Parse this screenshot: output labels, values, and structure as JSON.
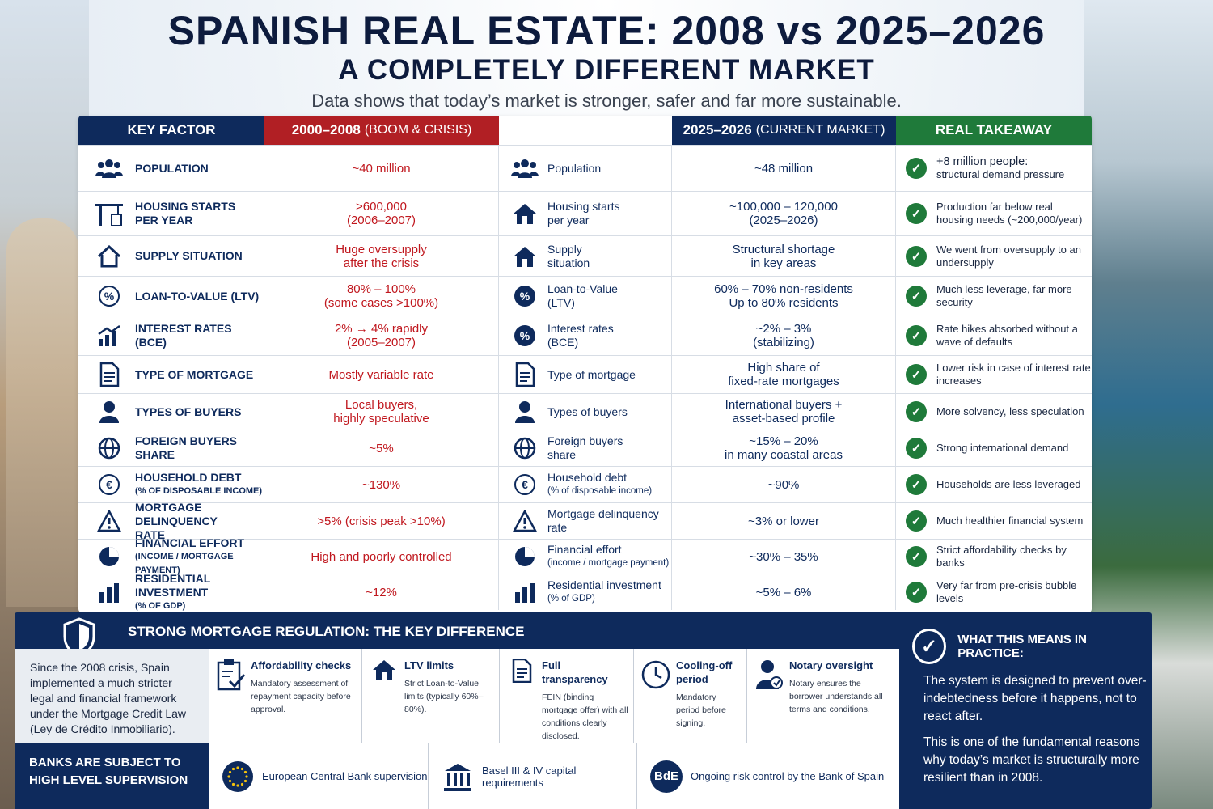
{
  "header": {
    "title": "SPANISH REAL ESTATE: 2008 vs 2025–2026",
    "subtitle": "A COMPLETELY DIFFERENT MARKET",
    "tagline": "Data shows that today’s market is stronger, safer and far more sustainable."
  },
  "table": {
    "headers": {
      "key_factor": "KEY FACTOR",
      "boom_main": "2000–2008",
      "boom_sub": "(BOOM & CRISIS)",
      "current_main": "2025–2026",
      "current_sub": "(CURRENT MARKET)",
      "takeaway": "REAL TAKEAWAY"
    },
    "rows": [
      {
        "factor": "POPULATION",
        "factor_sub": "",
        "boom": "~40 million",
        "boom2": "",
        "cur_label": "Population",
        "cur_label2": "",
        "cur_sub": "",
        "cur": "~48 million",
        "cur2": "",
        "take_lead": "+8 million people:",
        "take": "structural demand pressure",
        "icon": "people-icon"
      },
      {
        "factor": "HOUSING STARTS",
        "factor_sub": "PER YEAR",
        "boom": ">600,000",
        "boom2": "(2006–2007)",
        "cur_label": "Housing starts",
        "cur_label2": "per year",
        "cur_sub": "",
        "cur": "~100,000 – 120,000",
        "cur2": "(2025–2026)",
        "take_lead": "",
        "take": "Production far below real housing needs (~200,000/year)",
        "icon": "crane-icon"
      },
      {
        "factor": "SUPPLY SITUATION",
        "factor_sub": "",
        "boom": "Huge oversupply",
        "boom2": "after the crisis",
        "cur_label": "Supply",
        "cur_label2": "situation",
        "cur_sub": "",
        "cur": "Structural shortage",
        "cur2": "in key areas",
        "take_lead": "",
        "take": "We went from oversupply to an undersupply",
        "icon": "house-icon"
      },
      {
        "factor": "LOAN-TO-VALUE (LTV)",
        "factor_sub": "",
        "boom": "80% – 100%",
        "boom2": "(some cases >100%)",
        "cur_label": "Loan-to-Value",
        "cur_label2": "(LTV)",
        "cur_sub": "",
        "cur": "60% – 70% non-residents",
        "cur2": "Up to 80% residents",
        "take_lead": "",
        "take": "Much less leverage, far more security",
        "icon": "percent-icon"
      },
      {
        "factor": "INTEREST RATES (BCE)",
        "factor_sub": "",
        "boom": "2% → 4% rapidly",
        "boom2": "(2005–2007)",
        "cur_label": "Interest rates",
        "cur_label2": "(BCE)",
        "cur_sub": "",
        "cur": "~2% – 3%",
        "cur2": "(stabilizing)",
        "take_lead": "",
        "take": "Rate hikes absorbed without a wave of defaults",
        "icon": "growth-chart-icon"
      },
      {
        "factor": "TYPE OF MORTGAGE",
        "factor_sub": "",
        "boom": "Mostly variable rate",
        "boom2": "",
        "cur_label": "Type of mortgage",
        "cur_label2": "",
        "cur_sub": "",
        "cur": "High share of",
        "cur2": "fixed-rate mortgages",
        "take_lead": "",
        "take": "Lower risk in case of interest rate increases",
        "icon": "document-icon"
      },
      {
        "factor": "TYPES OF BUYERS",
        "factor_sub": "",
        "boom": "Local buyers,",
        "boom2": "highly speculative",
        "cur_label": "Types of buyers",
        "cur_label2": "",
        "cur_sub": "",
        "cur": "International buyers +",
        "cur2": "asset-based profile",
        "take_lead": "",
        "take": "More solvency, less speculation",
        "icon": "person-icon"
      },
      {
        "factor": "FOREIGN BUYERS SHARE",
        "factor_sub": "",
        "boom": "~5%",
        "boom2": "",
        "cur_label": "Foreign buyers",
        "cur_label2": "share",
        "cur_sub": "",
        "cur": "~15% – 20%",
        "cur2": "in many coastal areas",
        "take_lead": "",
        "take": "Strong international demand",
        "icon": "globe-icon"
      },
      {
        "factor": "HOUSEHOLD DEBT",
        "factor_sub": "(% OF DISPOSABLE INCOME)",
        "boom": "~130%",
        "boom2": "",
        "cur_label": "Household debt",
        "cur_label2": "",
        "cur_sub": "(% of disposable income)",
        "cur": "~90%",
        "cur2": "",
        "take_lead": "",
        "take": "Households are less leveraged",
        "icon": "euro-icon"
      },
      {
        "factor": "MORTGAGE DELINQUENCY",
        "factor_sub": "RATE",
        "boom": ">5% (crisis peak >10%)",
        "boom2": "",
        "cur_label": "Mortgage delinquency",
        "cur_label2": "rate",
        "cur_sub": "",
        "cur": "~3% or lower",
        "cur2": "",
        "take_lead": "",
        "take": "Much healthier financial system",
        "icon": "warning-icon"
      },
      {
        "factor": "FINANCIAL EFFORT",
        "factor_sub": "(INCOME / MORTGAGE PAYMENT)",
        "boom": "High and poorly controlled",
        "boom2": "",
        "cur_label": "Financial effort",
        "cur_label2": "",
        "cur_sub": "(income / mortgage payment)",
        "cur": "~30% – 35%",
        "cur2": "",
        "take_lead": "",
        "take": "Strict affordability checks by banks",
        "icon": "pie-chart-icon"
      },
      {
        "factor": "RESIDENTIAL INVESTMENT",
        "factor_sub": "(% OF GDP)",
        "boom": "~12%",
        "boom2": "",
        "cur_label": "Residential investment",
        "cur_label2": "",
        "cur_sub": "(% of GDP)",
        "cur": "~5% – 6%",
        "cur2": "",
        "take_lead": "",
        "take": "Very far from pre-crisis bubble levels",
        "icon": "bar-chart-icon"
      }
    ]
  },
  "regulation": {
    "title": "STRONG MORTGAGE REGULATION: THE KEY DIFFERENCE",
    "intro": "Since the 2008 crisis, Spain implemented a much stricter legal and financial framework under the Mortgage Credit Law (Ley de Crédito Inmobiliario).",
    "cards": [
      {
        "title": "Affordability checks",
        "desc": "Mandatory assessment of repayment capacity before approval.",
        "icon": "clipboard-check-icon"
      },
      {
        "title": "LTV limits",
        "desc": "Strict Loan-to-Value limits (typically 60%–80%).",
        "icon": "house-icon"
      },
      {
        "title": "Full transparency",
        "desc": "FEIN (binding mortgage offer) with all conditions clearly disclosed.",
        "icon": "document-icon"
      },
      {
        "title": "Cooling-off period",
        "desc": "Mandatory period before signing.",
        "icon": "clock-icon"
      },
      {
        "title": "Notary oversight",
        "desc": "Notary ensures the borrower understands all terms and conditions.",
        "icon": "notary-icon"
      }
    ],
    "supervision_label": "BANKS ARE SUBJECT TO HIGH LEVEL SUPERVISION",
    "supervision": [
      {
        "label": "European Central Bank supervision",
        "icon": "eu-stars-icon"
      },
      {
        "label": "Basel III & IV capital requirements",
        "icon": "bank-icon"
      },
      {
        "label": "Ongoing risk control by the Bank of Spain",
        "icon": "bde-icon",
        "badge": "BdE"
      }
    ]
  },
  "practice": {
    "title": "WHAT THIS MEANS IN PRACTICE:",
    "p1": "The system is designed to prevent over-indebtedness before it happens, not to react after.",
    "p2": "This is one of the fundamental reasons why today’s market is structurally more resilient than in 2008."
  },
  "colors": {
    "navy": "#0e2a5c",
    "red": "#b11f24",
    "green": "#1f7a3a"
  }
}
